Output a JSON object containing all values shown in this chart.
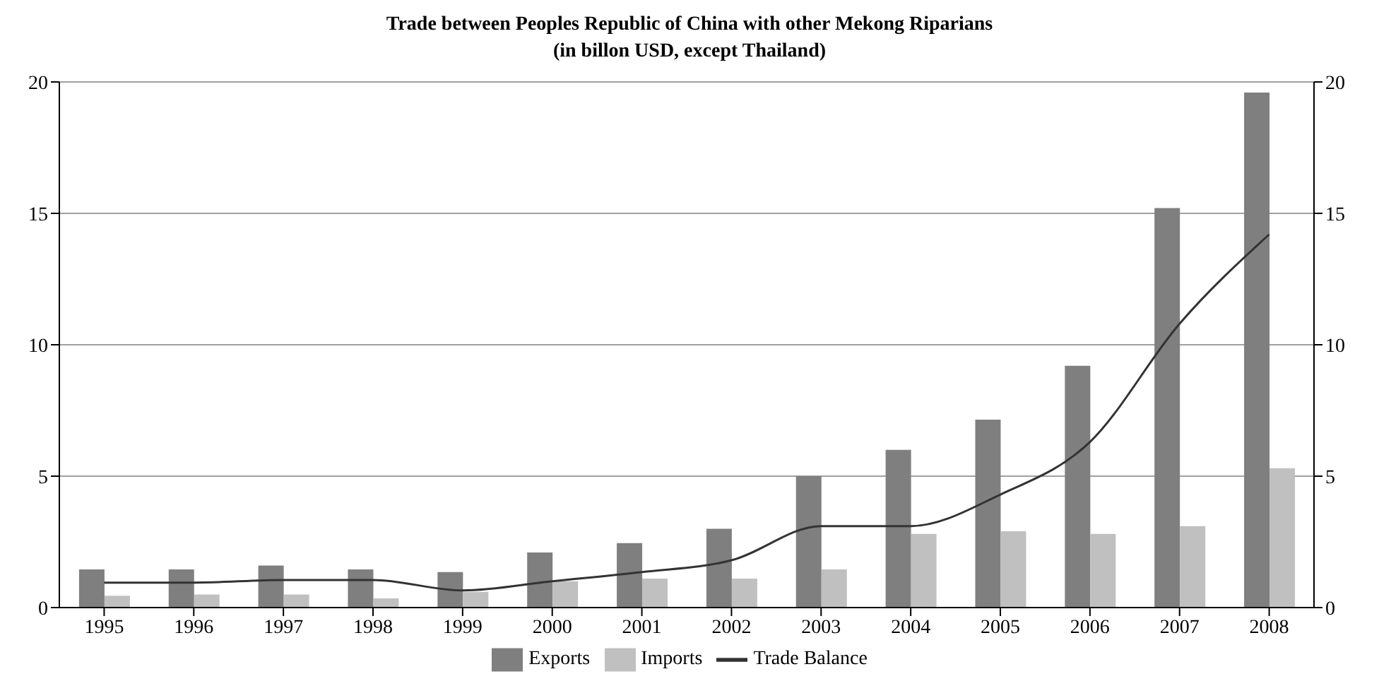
{
  "chart_data": {
    "type": "bar",
    "title": "Trade between Peoples Republic of China with other Mekong Riparians",
    "subtitle": "(in billon USD, except Thailand)",
    "categories": [
      "1995",
      "1996",
      "1997",
      "1998",
      "1999",
      "2000",
      "2001",
      "2002",
      "2003",
      "2004",
      "2005",
      "2006",
      "2007",
      "2008"
    ],
    "series": [
      {
        "name": "Exports",
        "color": "#7f7f7f",
        "values": [
          1.45,
          1.45,
          1.6,
          1.45,
          1.35,
          2.1,
          2.45,
          3.0,
          5.0,
          6.0,
          7.15,
          9.2,
          15.2,
          19.6
        ]
      },
      {
        "name": "Imports",
        "color": "#c0c0c0",
        "values": [
          0.45,
          0.5,
          0.5,
          0.35,
          0.6,
          1.0,
          1.1,
          1.1,
          1.45,
          2.8,
          2.9,
          2.8,
          3.1,
          5.3
        ]
      },
      {
        "name": "Trade Balance",
        "type": "line",
        "color": "#333333",
        "marker": "none",
        "values": [
          0.95,
          0.95,
          1.05,
          1.05,
          0.65,
          1.0,
          1.35,
          1.8,
          3.1,
          3.1,
          4.3,
          6.3,
          10.8,
          14.2
        ]
      }
    ],
    "ylim": [
      0,
      20
    ],
    "yticks": [
      0,
      5,
      10,
      15,
      20
    ],
    "y2lim": [
      0,
      20
    ],
    "y2ticks": [
      0,
      5,
      10,
      15,
      20
    ],
    "grid": "y",
    "legend": "bottom"
  }
}
